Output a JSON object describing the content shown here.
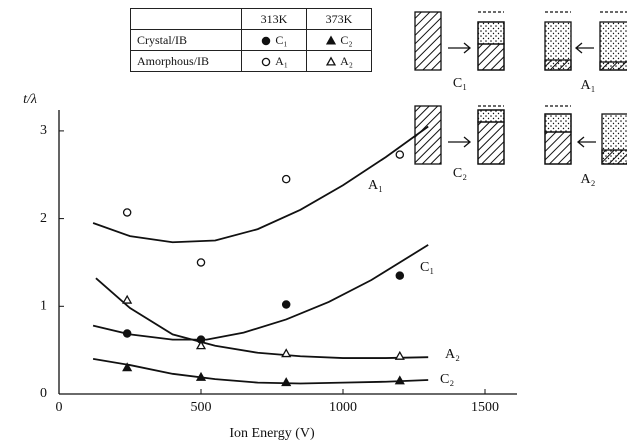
{
  "chart_data": {
    "type": "scatter",
    "y_label": "t/λ",
    "x_label": "Ion Energy (V)",
    "xlim": [
      0,
      1600
    ],
    "xticks": [
      0,
      500,
      1000,
      1500
    ],
    "ylim": [
      0,
      3.25
    ],
    "yticks": [
      0,
      1,
      2,
      3
    ],
    "grid": false,
    "legend_table": {
      "columns": [
        "313K",
        "373K"
      ],
      "rows": [
        "Crystal/IB",
        "Amorphous/IB"
      ]
    },
    "x": [
      240,
      500,
      800,
      1200
    ],
    "series": [
      {
        "name": "C₁",
        "color": "#111111",
        "marker": "circle",
        "filled": true,
        "values": [
          0.69,
          0.62,
          1.02,
          1.35
        ],
        "curve_x": [
          120,
          250,
          400,
          520,
          650,
          800,
          950,
          1100,
          1300
        ],
        "curve_y": [
          0.78,
          0.68,
          0.62,
          0.62,
          0.7,
          0.85,
          1.05,
          1.3,
          1.7
        ]
      },
      {
        "name": "C₂",
        "color": "#111111",
        "marker": "triangle",
        "filled": true,
        "values": [
          0.3,
          0.19,
          0.13,
          0.15
        ],
        "curve_x": [
          120,
          250,
          400,
          550,
          700,
          850,
          1000,
          1150,
          1300
        ],
        "curve_y": [
          0.4,
          0.33,
          0.23,
          0.17,
          0.13,
          0.12,
          0.13,
          0.14,
          0.16
        ]
      },
      {
        "name": "A₁",
        "color": "#111111",
        "marker": "circle",
        "filled": false,
        "values": [
          2.07,
          1.5,
          2.45,
          2.73
        ],
        "curve_x": [
          120,
          250,
          400,
          550,
          700,
          850,
          1000,
          1150,
          1300
        ],
        "curve_y": [
          1.95,
          1.8,
          1.73,
          1.75,
          1.88,
          2.1,
          2.38,
          2.7,
          3.05
        ]
      },
      {
        "name": "A₂",
        "color": "#111111",
        "marker": "triangle",
        "filled": false,
        "values": [
          1.07,
          0.55,
          0.46,
          0.43
        ],
        "curve_x": [
          130,
          250,
          400,
          550,
          700,
          850,
          1000,
          1150,
          1300
        ],
        "curve_y": [
          1.32,
          0.98,
          0.68,
          0.55,
          0.47,
          0.43,
          0.41,
          0.41,
          0.42
        ]
      }
    ]
  }
}
